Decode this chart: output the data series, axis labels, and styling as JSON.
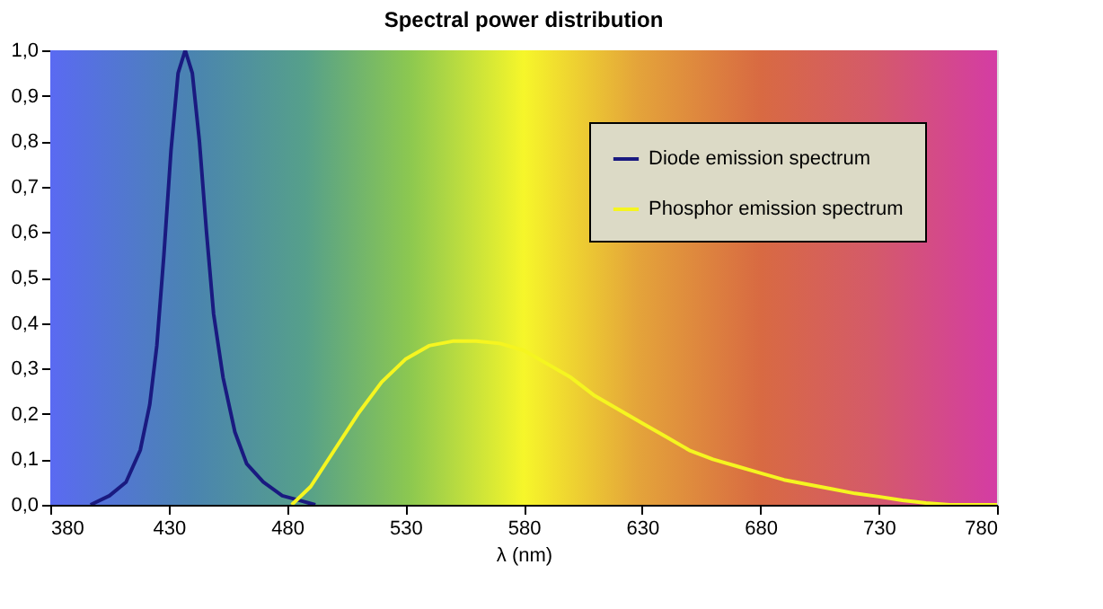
{
  "chart_data": {
    "type": "line",
    "title": "Spectral power distribution",
    "xlabel": "λ (nm)",
    "xlim": [
      380,
      780
    ],
    "xticks": [
      380,
      430,
      480,
      530,
      580,
      630,
      680,
      730,
      780
    ],
    "ylim": [
      0,
      1
    ],
    "yticks": [
      {
        "value": 0,
        "label": "0,0"
      },
      {
        "value": 0.1,
        "label": "0,1"
      },
      {
        "value": 0.2,
        "label": "0,2"
      },
      {
        "value": 0.3,
        "label": "0,3"
      },
      {
        "value": 0.4,
        "label": "0,4"
      },
      {
        "value": 0.5,
        "label": "0,5"
      },
      {
        "value": 0.6,
        "label": "0,6"
      },
      {
        "value": 0.7,
        "label": "0,7"
      },
      {
        "value": 0.8,
        "label": "0,8"
      },
      {
        "value": 0.9,
        "label": "0,9"
      },
      {
        "value": 1,
        "label": "1,0"
      }
    ],
    "legend": "top right",
    "marker": "none",
    "line_style": "solid",
    "series": [
      {
        "name": "Diode emission spectrum",
        "color": "#1a1a80",
        "x": [
          397,
          405,
          412,
          418,
          422,
          425,
          428,
          431,
          434,
          437,
          440,
          443,
          446,
          449,
          453,
          458,
          463,
          470,
          478,
          485,
          492
        ],
        "values": [
          0,
          0.02,
          0.05,
          0.12,
          0.22,
          0.35,
          0.55,
          0.78,
          0.95,
          1.0,
          0.95,
          0.8,
          0.6,
          0.42,
          0.28,
          0.16,
          0.09,
          0.05,
          0.02,
          0.01,
          0
        ]
      },
      {
        "name": "Phosphor emission spectrum",
        "color": "#f5f520",
        "x": [
          482,
          490,
          500,
          510,
          520,
          530,
          540,
          550,
          560,
          570,
          580,
          590,
          600,
          610,
          620,
          630,
          640,
          650,
          660,
          670,
          680,
          690,
          700,
          710,
          720,
          730,
          740,
          750,
          760,
          780
        ],
        "values": [
          0,
          0.04,
          0.12,
          0.2,
          0.27,
          0.32,
          0.35,
          0.36,
          0.36,
          0.355,
          0.34,
          0.31,
          0.28,
          0.24,
          0.21,
          0.18,
          0.15,
          0.12,
          0.1,
          0.085,
          0.07,
          0.055,
          0.045,
          0.035,
          0.025,
          0.018,
          0.01,
          0.004,
          0,
          0
        ]
      }
    ]
  }
}
